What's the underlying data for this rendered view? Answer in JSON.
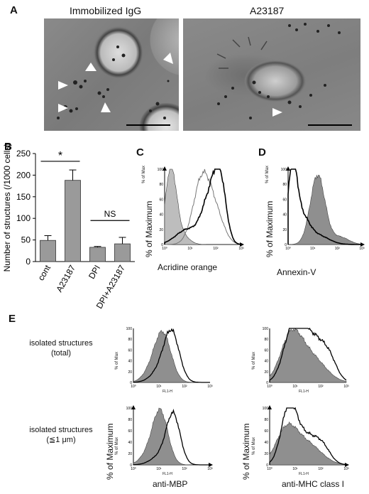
{
  "panels": {
    "A": {
      "letter": "A",
      "left_title": "Immobilized IgG",
      "right_title": "A23187"
    },
    "B": {
      "letter": "B",
      "significance_star": "*",
      "significance_ns": "NS"
    },
    "C": {
      "letter": "C",
      "ylabel_small": "% of Max",
      "ylabel": "% of Maximum",
      "xlabel": "Acridine orange"
    },
    "D": {
      "letter": "D",
      "ylabel_small": "% of Max",
      "ylabel": "% of Maximum",
      "xlabel": "Annexin-V"
    },
    "E": {
      "letter": "E",
      "row1_label_line1": "isolated structures",
      "row1_label_line2": "(total)",
      "row2_label_line1": "isolated structures",
      "row2_label_line2": "(≦1 μm)",
      "ylabel_small": "% of Max",
      "xlabel_small": "FL1-H",
      "ylabel": "% of Maximum",
      "xlabel_left": "anti-MBP",
      "xlabel_right": "anti-MHC class I"
    }
  },
  "chart_data": [
    {
      "type": "bar",
      "panel": "B",
      "categories": [
        "cont",
        "A23187",
        "DPI",
        "DPI+A23187"
      ],
      "values": [
        49,
        188,
        33,
        41
      ],
      "errors": [
        11,
        24,
        2,
        15
      ],
      "ylabel": "Number of structures (/1000 cells)",
      "ylim": [
        0,
        250
      ],
      "yticks": [
        0,
        50,
        100,
        150,
        200,
        250
      ],
      "bar_color": "#9a9a9a"
    },
    {
      "type": "histogram",
      "panel": "C",
      "xscale": "log",
      "xlim": [
        1,
        1000
      ],
      "ylim": [
        0,
        100
      ],
      "xticks": [
        "10⁰",
        "10¹",
        "10²",
        "10³"
      ],
      "yticks": [
        0,
        20,
        40,
        60,
        80,
        100
      ]
    },
    {
      "type": "histogram",
      "panel": "D",
      "xscale": "log",
      "xlim": [
        1,
        1000
      ],
      "ylim": [
        0,
        100
      ],
      "xticks": [
        "10⁰",
        "10¹",
        "10²",
        "10³"
      ],
      "yticks": [
        0,
        20,
        40,
        60,
        80,
        100
      ]
    }
  ]
}
